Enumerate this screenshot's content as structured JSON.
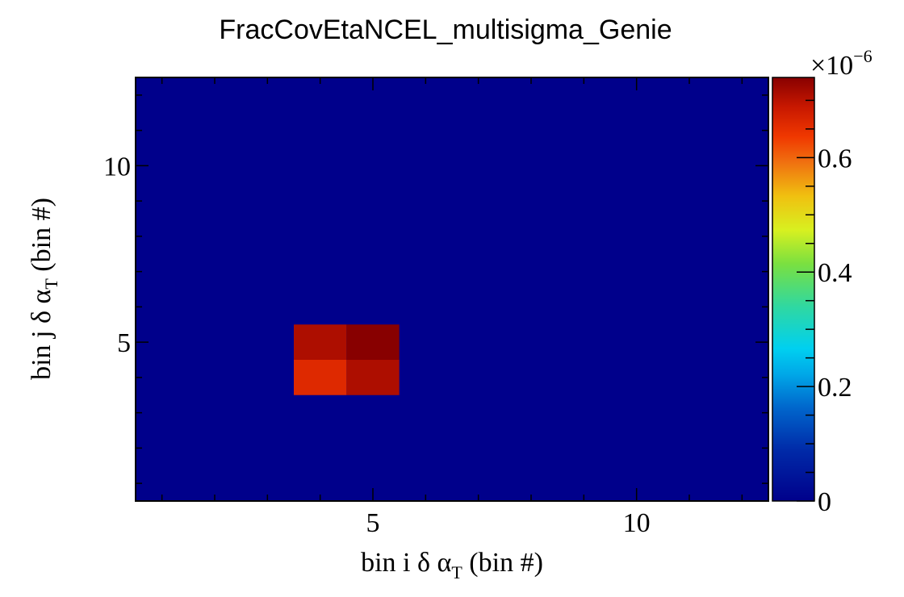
{
  "chart_data": {
    "type": "heatmap",
    "title": "FracCovEtaNCEL_multisigma_Genie",
    "xlabel": {
      "prefix": "bin i δ α",
      "sub": "T",
      "suffix": " (bin #)"
    },
    "ylabel": {
      "prefix": "bin j δ α",
      "sub": "T",
      "suffix": " (bin #)"
    },
    "x_range": [
      0.5,
      12.5
    ],
    "y_range": [
      0.5,
      12.5
    ],
    "x_ticks": [
      5,
      10
    ],
    "y_ticks": [
      5,
      10
    ],
    "colorbar": {
      "min": 0,
      "max": 0.74,
      "ticks": [
        "0",
        "0.2",
        "0.4",
        "0.6"
      ],
      "tick_values": [
        0,
        0.2,
        0.4,
        0.6
      ],
      "exponent_label": "×10",
      "exponent": "−6",
      "palette": "rainbow (dark blue → cyan → green → yellow → red → dark red)"
    },
    "background_value": 0,
    "cells": [
      {
        "x": 4,
        "y": 4,
        "value": 0.66
      },
      {
        "x": 5,
        "y": 4,
        "value": 0.71
      },
      {
        "x": 4,
        "y": 5,
        "value": 0.71
      },
      {
        "x": 5,
        "y": 5,
        "value": 0.74
      }
    ],
    "colors": {
      "background": "#00008b",
      "frame": "#000000"
    }
  }
}
